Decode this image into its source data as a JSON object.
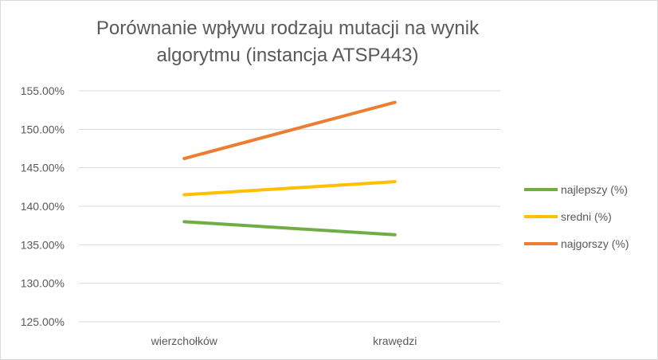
{
  "chart_data": {
    "type": "line",
    "title_lines": [
      "Porównanie wpływu rodzaju mutacji na wynik",
      "algorytmu (instancja ATSP443)"
    ],
    "categories": [
      "wierzchołków",
      "krawędzi"
    ],
    "series": [
      {
        "name": "najlepszy (%)",
        "values": [
          138.0,
          136.3
        ],
        "color": "#70ad47"
      },
      {
        "name": "sredni (%)",
        "values": [
          141.5,
          143.2
        ],
        "color": "#ffc000"
      },
      {
        "name": "najgorszy (%)",
        "values": [
          146.2,
          153.5
        ],
        "color": "#ed7d31"
      }
    ],
    "y_ticks": [
      "155.00%",
      "150.00%",
      "145.00%",
      "140.00%",
      "135.00%",
      "130.00%",
      "125.00%"
    ],
    "ylim": [
      125,
      155
    ],
    "grid": true,
    "legend_position": "right"
  }
}
